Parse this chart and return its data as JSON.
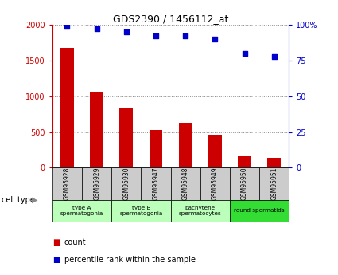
{
  "title": "GDS2390 / 1456112_at",
  "samples": [
    "GSM95928",
    "GSM95929",
    "GSM95930",
    "GSM95947",
    "GSM95948",
    "GSM95949",
    "GSM95950",
    "GSM95951"
  ],
  "counts": [
    1680,
    1060,
    830,
    530,
    630,
    460,
    160,
    140
  ],
  "percentiles": [
    99,
    97,
    95,
    92,
    92,
    90,
    80,
    78
  ],
  "ylim_left": [
    0,
    2000
  ],
  "ylim_right": [
    0,
    100
  ],
  "yticks_left": [
    0,
    500,
    1000,
    1500,
    2000
  ],
  "yticks_right": [
    0,
    25,
    50,
    75,
    100
  ],
  "bar_color": "#cc0000",
  "dot_color": "#0000cc",
  "cell_groups": [
    {
      "label": "type A\nspermatogonia",
      "start": 0,
      "end": 2,
      "color": "#bbffbb"
    },
    {
      "label": "type B\nspermatogonia",
      "start": 2,
      "end": 4,
      "color": "#bbffbb"
    },
    {
      "label": "pachytene\nspermatocytes",
      "start": 4,
      "end": 6,
      "color": "#bbffbb"
    },
    {
      "label": "round spermatids",
      "start": 6,
      "end": 8,
      "color": "#33dd33"
    }
  ],
  "sample_box_color": "#cccccc",
  "legend_count_color": "#cc0000",
  "legend_pct_color": "#0000cc",
  "cell_type_label": "cell type",
  "count_label": "count",
  "pct_label": "percentile rank within the sample",
  "bg_color": "#ffffff"
}
